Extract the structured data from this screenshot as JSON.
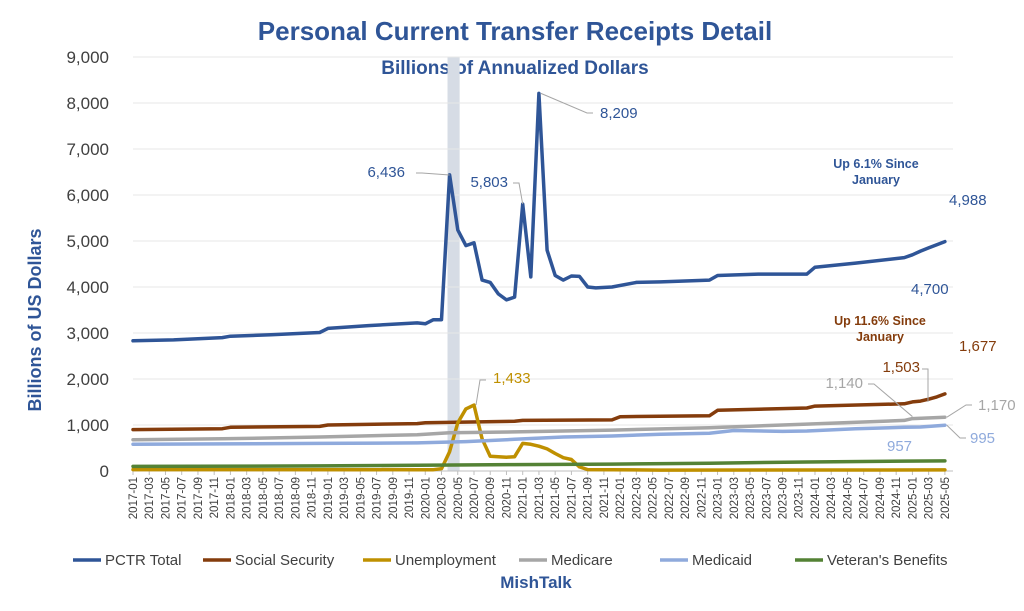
{
  "colors": {
    "pctr": "#2F5597",
    "social_security": "#843C0C",
    "unemployment": "#BF9000",
    "medicare": "#A6A6A6",
    "medicaid": "#8FAADC",
    "veterans": "#548235",
    "recession_band": "#D6DCE5",
    "title": "#2F5597"
  },
  "chart_data": {
    "type": "line",
    "title": "Personal Current Transfer Receipts Detail",
    "subtitle": "Billions of Annualized Dollars",
    "ylabel": "Billions of US Dollars",
    "xlabel": "",
    "footer": "MishTalk",
    "ylim": [
      0,
      9000
    ],
    "yticks": [
      "0",
      "1,000",
      "2,000",
      "3,000",
      "4,000",
      "5,000",
      "6,000",
      "7,000",
      "8,000",
      "9,000"
    ],
    "grid": true,
    "legend_position": "bottom",
    "shaded_period": [
      "2020-03",
      "2020-04"
    ],
    "x_start": "2017-01",
    "x_end": "2025-06",
    "x_tick_labels": [
      "2017-01",
      "2017-03",
      "2017-05",
      "2017-07",
      "2017-09",
      "2017-11",
      "2018-01",
      "2018-03",
      "2018-05",
      "2018-07",
      "2018-09",
      "2018-11",
      "2019-01",
      "2019-03",
      "2019-05",
      "2019-07",
      "2019-09",
      "2019-11",
      "2020-01",
      "2020-03",
      "2020-05",
      "2020-07",
      "2020-09",
      "2020-11",
      "2021-01",
      "2021-03",
      "2021-05",
      "2021-07",
      "2021-09",
      "2021-11",
      "2022-01",
      "2022-03",
      "2022-05",
      "2022-07",
      "2022-09",
      "2022-11",
      "2023-01",
      "2023-03",
      "2023-05",
      "2023-07",
      "2023-09",
      "2023-11",
      "2024-01",
      "2024-03",
      "2024-05",
      "2024-07",
      "2024-09",
      "2024-11",
      "2025-01",
      "2025-03",
      "2025-05"
    ],
    "series": [
      {
        "name": "PCTR Total",
        "color_key": "pctr",
        "points": [
          [
            "2017-01",
            2830
          ],
          [
            "2017-06",
            2850
          ],
          [
            "2017-12",
            2900
          ],
          [
            "2018-01",
            2930
          ],
          [
            "2018-06",
            2960
          ],
          [
            "2018-12",
            3010
          ],
          [
            "2019-01",
            3100
          ],
          [
            "2019-06",
            3160
          ],
          [
            "2019-12",
            3220
          ],
          [
            "2020-01",
            3200
          ],
          [
            "2020-02",
            3290
          ],
          [
            "2020-03",
            3290
          ],
          [
            "2020-04",
            6436
          ],
          [
            "2020-05",
            5240
          ],
          [
            "2020-06",
            4900
          ],
          [
            "2020-07",
            4960
          ],
          [
            "2020-08",
            4150
          ],
          [
            "2020-09",
            4100
          ],
          [
            "2020-10",
            3850
          ],
          [
            "2020-11",
            3720
          ],
          [
            "2020-12",
            3780
          ],
          [
            "2021-01",
            5803
          ],
          [
            "2021-02",
            4220
          ],
          [
            "2021-03",
            8209
          ],
          [
            "2021-04",
            4800
          ],
          [
            "2021-05",
            4250
          ],
          [
            "2021-06",
            4150
          ],
          [
            "2021-07",
            4240
          ],
          [
            "2021-08",
            4230
          ],
          [
            "2021-09",
            4000
          ],
          [
            "2021-10",
            3980
          ],
          [
            "2021-12",
            4000
          ],
          [
            "2022-03",
            4100
          ],
          [
            "2022-06",
            4110
          ],
          [
            "2022-12",
            4150
          ],
          [
            "2023-01",
            4250
          ],
          [
            "2023-06",
            4280
          ],
          [
            "2023-12",
            4280
          ],
          [
            "2024-01",
            4430
          ],
          [
            "2024-06",
            4520
          ],
          [
            "2024-12",
            4640
          ],
          [
            "2025-01",
            4700
          ],
          [
            "2025-02",
            4780
          ],
          [
            "2025-03",
            4850
          ],
          [
            "2025-04",
            4920
          ],
          [
            "2025-05",
            4988
          ]
        ]
      },
      {
        "name": "Social Security",
        "color_key": "social_security",
        "points": [
          [
            "2017-01",
            900
          ],
          [
            "2017-12",
            920
          ],
          [
            "2018-01",
            950
          ],
          [
            "2018-12",
            970
          ],
          [
            "2019-01",
            1000
          ],
          [
            "2019-12",
            1030
          ],
          [
            "2020-01",
            1050
          ],
          [
            "2020-12",
            1080
          ],
          [
            "2021-01",
            1100
          ],
          [
            "2021-12",
            1110
          ],
          [
            "2022-01",
            1180
          ],
          [
            "2022-12",
            1200
          ],
          [
            "2023-01",
            1320
          ],
          [
            "2023-12",
            1370
          ],
          [
            "2024-01",
            1410
          ],
          [
            "2024-12",
            1460
          ],
          [
            "2025-01",
            1503
          ],
          [
            "2025-02",
            1520
          ],
          [
            "2025-03",
            1560
          ],
          [
            "2025-04",
            1610
          ],
          [
            "2025-05",
            1677
          ]
        ]
      },
      {
        "name": "Unemployment",
        "color_key": "unemployment",
        "points": [
          [
            "2017-01",
            30
          ],
          [
            "2019-12",
            28
          ],
          [
            "2020-02",
            28
          ],
          [
            "2020-03",
            50
          ],
          [
            "2020-04",
            420
          ],
          [
            "2020-05",
            1050
          ],
          [
            "2020-06",
            1350
          ],
          [
            "2020-07",
            1433
          ],
          [
            "2020-08",
            700
          ],
          [
            "2020-09",
            320
          ],
          [
            "2020-10",
            310
          ],
          [
            "2020-11",
            300
          ],
          [
            "2020-12",
            310
          ],
          [
            "2021-01",
            600
          ],
          [
            "2021-02",
            580
          ],
          [
            "2021-03",
            540
          ],
          [
            "2021-04",
            480
          ],
          [
            "2021-05",
            380
          ],
          [
            "2021-06",
            290
          ],
          [
            "2021-07",
            250
          ],
          [
            "2021-08",
            90
          ],
          [
            "2021-09",
            30
          ],
          [
            "2022-06",
            20
          ],
          [
            "2025-05",
            25
          ]
        ]
      },
      {
        "name": "Medicare",
        "color_key": "medicare",
        "points": [
          [
            "2017-01",
            680
          ],
          [
            "2017-12",
            700
          ],
          [
            "2018-12",
            740
          ],
          [
            "2019-12",
            790
          ],
          [
            "2020-04",
            830
          ],
          [
            "2020-12",
            850
          ],
          [
            "2021-12",
            890
          ],
          [
            "2022-12",
            940
          ],
          [
            "2023-12",
            1020
          ],
          [
            "2024-12",
            1100
          ],
          [
            "2025-01",
            1140
          ],
          [
            "2025-05",
            1170
          ]
        ]
      },
      {
        "name": "Medicaid",
        "color_key": "medicaid",
        "points": [
          [
            "2017-01",
            580
          ],
          [
            "2017-12",
            590
          ],
          [
            "2018-12",
            600
          ],
          [
            "2019-12",
            610
          ],
          [
            "2020-06",
            640
          ],
          [
            "2020-12",
            690
          ],
          [
            "2021-06",
            740
          ],
          [
            "2021-12",
            760
          ],
          [
            "2022-06",
            800
          ],
          [
            "2022-12",
            820
          ],
          [
            "2023-03",
            880
          ],
          [
            "2023-09",
            860
          ],
          [
            "2023-12",
            870
          ],
          [
            "2024-06",
            920
          ],
          [
            "2024-12",
            950
          ],
          [
            "2025-02",
            957
          ],
          [
            "2025-05",
            995
          ]
        ]
      },
      {
        "name": "Veteran's Benefits",
        "color_key": "veterans",
        "points": [
          [
            "2017-01",
            100
          ],
          [
            "2018-12",
            110
          ],
          [
            "2019-12",
            125
          ],
          [
            "2020-12",
            140
          ],
          [
            "2021-12",
            150
          ],
          [
            "2022-12",
            170
          ],
          [
            "2023-12",
            195
          ],
          [
            "2024-12",
            215
          ],
          [
            "2025-05",
            220
          ]
        ]
      }
    ],
    "annotations": [
      {
        "text": "6,436",
        "color_key": "pctr"
      },
      {
        "text": "5,803",
        "color_key": "pctr"
      },
      {
        "text": "8,209",
        "color_key": "pctr"
      },
      {
        "text": "4,988",
        "color_key": "pctr"
      },
      {
        "text": "4,700",
        "color_key": "pctr"
      },
      {
        "text": "1,433",
        "color_key": "unemployment"
      },
      {
        "text": "1,677",
        "color_key": "social_security"
      },
      {
        "text": "1,503",
        "color_key": "social_security"
      },
      {
        "text": "1,140",
        "color_key": "medicare"
      },
      {
        "text": "1,170",
        "color_key": "medicare"
      },
      {
        "text": "957",
        "color_key": "medicaid"
      },
      {
        "text": "995",
        "color_key": "medicaid"
      }
    ],
    "notes": [
      {
        "lines": [
          "Up 6.1% Since",
          "January"
        ],
        "color_key": "pctr"
      },
      {
        "lines": [
          "Up 11.6% Since",
          "January"
        ],
        "color_key": "social_security"
      }
    ]
  }
}
